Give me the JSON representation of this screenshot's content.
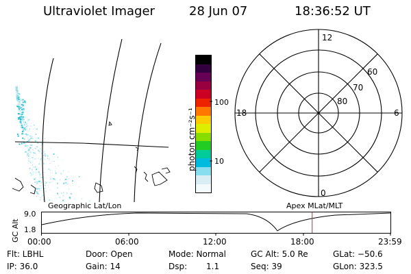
{
  "header": {
    "instrument": "Ultraviolet Imager",
    "date": "28 Jun 07",
    "time": "18:36:52 UT"
  },
  "colorbar": {
    "label": "photon cm⁻²s⁻¹",
    "ticks": [
      "100",
      "10"
    ],
    "colors": [
      "#000000",
      "#33003f",
      "#660055",
      "#99003f",
      "#cc0022",
      "#ee2200",
      "#ff7700",
      "#ffcc00",
      "#ddee00",
      "#88dd00",
      "#22cc22",
      "#00cc99",
      "#00bbdd",
      "#88ddee",
      "#d8eef4",
      "#f4fbfc"
    ]
  },
  "polar_plot": {
    "mlt_labels": {
      "top": "12",
      "left": "18",
      "right": "6",
      "bottom": "0"
    },
    "lat_labels": [
      "60",
      "70",
      "80"
    ]
  },
  "altitude_panel": {
    "ylabel": "GC Alt",
    "ymax": "9.0",
    "ymin": "1.8",
    "left_label": "Geographic Lat/Lon",
    "right_label": "Apex MLat/MLT",
    "time_ticks": [
      "00:00",
      "06:00",
      "12:00",
      "18:00",
      "23:59"
    ],
    "marker_color": "#b03030",
    "marker_fraction": 0.775
  },
  "info": {
    "filter": "Flt: LBHL",
    "door": "Door: Open",
    "mode": "Mode: Normal",
    "gc_alt": "GC Alt: 5.0 Re",
    "glat": "GLat: −50.6",
    "ip": "IP: 36.0",
    "gain": "Gain: 14",
    "dsp_label": "Dsp:",
    "dsp_value": "1.1",
    "seq": "Seq: 39",
    "glon": "GLon: 323.5"
  }
}
